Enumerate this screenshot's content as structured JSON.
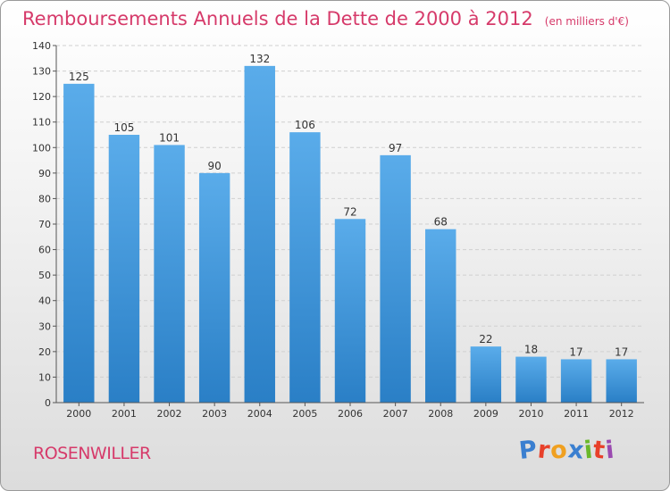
{
  "chart_data": {
    "type": "bar",
    "title": "Remboursements Annuels de la Dette de 2000 à 2012",
    "subtitle": "(en milliers d'€)",
    "categories": [
      "2000",
      "2001",
      "2002",
      "2003",
      "2004",
      "2005",
      "2006",
      "2007",
      "2008",
      "2009",
      "2010",
      "2011",
      "2012"
    ],
    "values": [
      125,
      105,
      101,
      90,
      132,
      106,
      72,
      97,
      68,
      22,
      18,
      17,
      17
    ],
    "ylim": [
      0,
      140
    ],
    "yticks": [
      0,
      10,
      20,
      30,
      40,
      50,
      60,
      70,
      80,
      90,
      100,
      110,
      120,
      130,
      140
    ],
    "grid": true,
    "bar_color_top": "#5aacea",
    "bar_color_bottom": "#2a7fc6"
  },
  "footer": {
    "commune": "ROSENWILLER",
    "logo": [
      "P",
      "r",
      "o",
      "x",
      "i",
      "t",
      "i"
    ],
    "logo_colors": [
      "#3a7fd0",
      "#e8402a",
      "#f0a020",
      "#3a7fd0",
      "#6ab82a",
      "#e8402a",
      "#9a4ab0"
    ]
  },
  "colors": {
    "title": "#d63a6a",
    "grid": "#cfcfcf",
    "axis": "#555555"
  }
}
